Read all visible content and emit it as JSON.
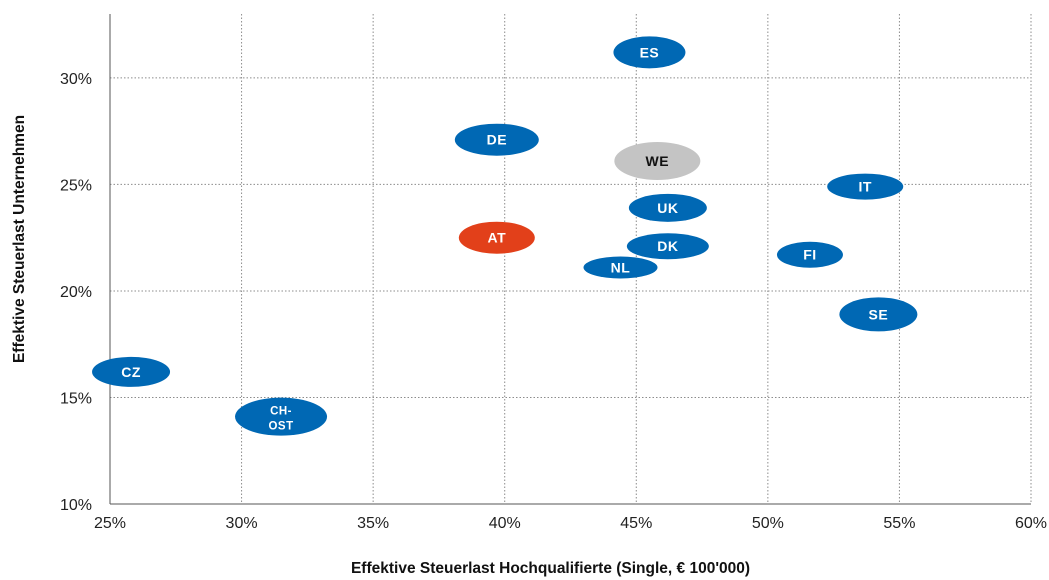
{
  "chart_data": {
    "type": "scatter",
    "title": "",
    "xlabel": "Effektive Steuerlast Hochqualifierte (Single, € 100'000)",
    "ylabel": "Effektive Steuerlast Unternehmen",
    "xlim": [
      25,
      60
    ],
    "ylim": [
      10,
      33
    ],
    "x_ticks": [
      25,
      30,
      35,
      40,
      45,
      50,
      55,
      60
    ],
    "y_ticks": [
      10,
      15,
      20,
      25,
      30
    ],
    "x_tick_labels": [
      "25%",
      "30%",
      "35%",
      "40%",
      "45%",
      "50%",
      "55%",
      "60%"
    ],
    "y_tick_labels": [
      "10%",
      "15%",
      "20%",
      "25%",
      "30%"
    ],
    "grid": true,
    "colors": {
      "default": "#0068b4",
      "highlight": "#e2401a",
      "benchmark": "#c4c4c4"
    },
    "points": [
      {
        "label": "ES",
        "x": 45.5,
        "y": 31.2,
        "color": "default"
      },
      {
        "label": "DE",
        "x": 39.7,
        "y": 27.1,
        "color": "default"
      },
      {
        "label": "WE",
        "x": 45.8,
        "y": 26.1,
        "color": "benchmark"
      },
      {
        "label": "IT",
        "x": 53.7,
        "y": 24.9,
        "color": "default"
      },
      {
        "label": "UK",
        "x": 46.2,
        "y": 23.9,
        "color": "default"
      },
      {
        "label": "AT",
        "x": 39.7,
        "y": 22.5,
        "color": "highlight"
      },
      {
        "label": "DK",
        "x": 46.2,
        "y": 22.1,
        "color": "default"
      },
      {
        "label": "FI",
        "x": 51.6,
        "y": 21.7,
        "color": "default"
      },
      {
        "label": "NL",
        "x": 44.4,
        "y": 21.1,
        "color": "default"
      },
      {
        "label": "SE",
        "x": 54.2,
        "y": 18.9,
        "color": "default"
      },
      {
        "label": "CZ",
        "x": 25.8,
        "y": 16.2,
        "color": "default"
      },
      {
        "label": "CH-OST",
        "label_lines": [
          "CH-",
          "OST"
        ],
        "x": 31.5,
        "y": 14.1,
        "color": "default"
      }
    ]
  }
}
